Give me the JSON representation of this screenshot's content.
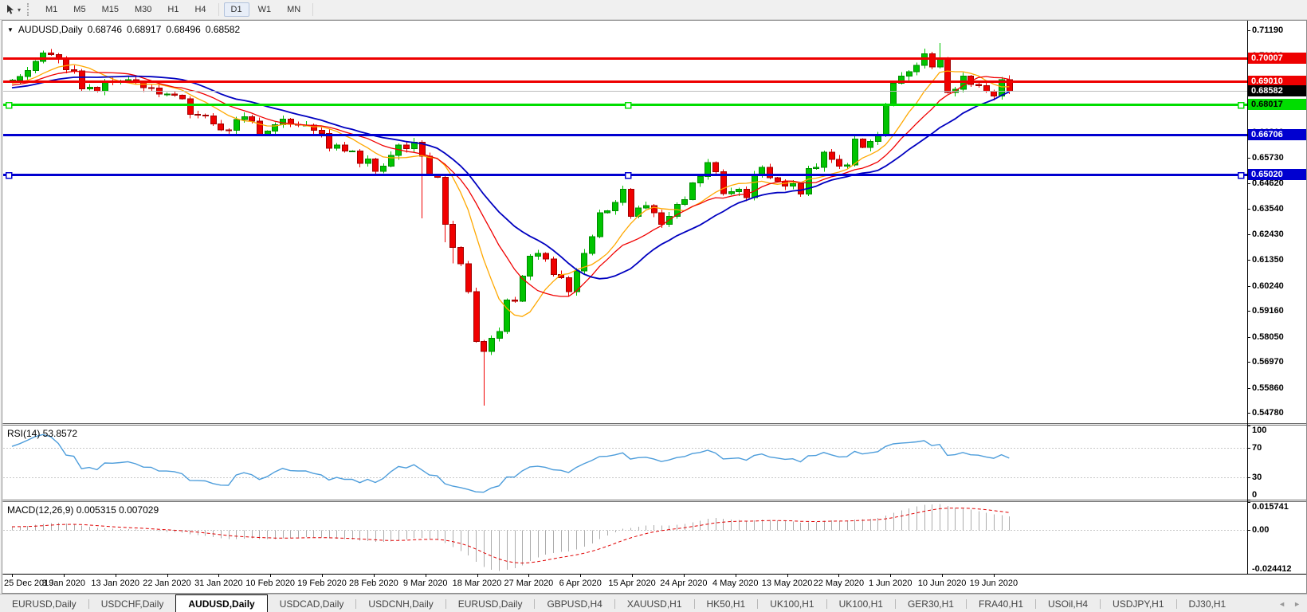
{
  "toolbar": {
    "dropdown_caret": "▾",
    "timeframes": [
      "M1",
      "M5",
      "M15",
      "M30",
      "H1",
      "H4",
      "D1",
      "W1",
      "MN"
    ],
    "active_timeframe": "D1"
  },
  "chart": {
    "title": {
      "expander": "▼",
      "symbol_period": "AUDUSD,Daily",
      "open": "0.68746",
      "high": "0.68917",
      "low": "0.68496",
      "close": "0.68582"
    },
    "price_axis_ticks": [
      "0.71190",
      "0.70110",
      "0.69000",
      "0.67920",
      "0.66810",
      "0.65730",
      "0.64620",
      "0.63540",
      "0.62430",
      "0.61350",
      "0.60240",
      "0.59160",
      "0.58050",
      "0.56970",
      "0.55860",
      "0.54780"
    ],
    "axis_price_labels": [
      {
        "text": "0.70007",
        "value": 0.70007,
        "bg": "#ee0000",
        "fg": "#ffffff"
      },
      {
        "text": "0.69010",
        "value": 0.6901,
        "bg": "#ee0000",
        "fg": "#ffffff"
      },
      {
        "text": "0.68582",
        "value": 0.68582,
        "bg": "#000000",
        "fg": "#ffffff"
      },
      {
        "text": "0.68017",
        "value": 0.68017,
        "bg": "#00dd00",
        "fg": "#000000"
      },
      {
        "text": "0.66706",
        "value": 0.66706,
        "bg": "#0000d0",
        "fg": "#ffffff"
      },
      {
        "text": "0.65020",
        "value": 0.6502,
        "bg": "#0000d0",
        "fg": "#ffffff"
      }
    ],
    "levels": [
      {
        "value": 0.70007,
        "color": "#ee0000",
        "width": 3,
        "selected": false,
        "name": "resistance-line-0-70007"
      },
      {
        "value": 0.6901,
        "color": "#ee0000",
        "width": 3,
        "selected": false,
        "name": "resistance-line-0-69010"
      },
      {
        "value": 0.68582,
        "color": "#bdbdbd",
        "width": 1,
        "selected": false,
        "name": "current-price-line"
      },
      {
        "value": 0.68017,
        "color": "#00dd00",
        "width": 3,
        "selected": true,
        "name": "support-line-0-68017"
      },
      {
        "value": 0.66706,
        "color": "#0000d0",
        "width": 3,
        "selected": false,
        "name": "support-line-0-66706"
      },
      {
        "value": 0.6502,
        "color": "#0000d0",
        "width": 3,
        "selected": true,
        "name": "support-line-0-65020"
      }
    ],
    "date_axis": [
      "25 Dec 2019",
      "3 Jan 2020",
      "13 Jan 2020",
      "22 Jan 2020",
      "31 Jan 2020",
      "10 Feb 2020",
      "19 Feb 2020",
      "28 Feb 2020",
      "9 Mar 2020",
      "18 Mar 2020",
      "27 Mar 2020",
      "6 Apr 2020",
      "15 Apr 2020",
      "24 Apr 2020",
      "4 May 2020",
      "13 May 2020",
      "22 May 2020",
      "1 Jun 2020",
      "10 Jun 2020",
      "19 Jun 2020"
    ]
  },
  "rsi_panel": {
    "label": "RSI(14) 53.8572",
    "axis_ticks": [
      "100",
      "70",
      "30",
      "0"
    ],
    "axis_values": [
      100,
      70,
      30,
      0
    ],
    "levels": [
      70,
      30
    ],
    "line_color": "#4d9ddb"
  },
  "macd_panel": {
    "label": "MACD(12,26,9) 0.005315 0.007029",
    "axis_ticks": [
      "0.015741",
      "0.00",
      "-0.024412"
    ],
    "axis_values": [
      0.015741,
      0,
      -0.024412
    ],
    "range": [
      -0.024412,
      0.015741
    ],
    "histogram_color": "#ababab",
    "signal_color": "#e00000"
  },
  "chart_data": {
    "type": "candlestick",
    "title": "AUDUSD, Daily",
    "up_color": "#00c400",
    "up_stroke": "#008a00",
    "down_color": "#f00000",
    "down_stroke": "#a00000",
    "price_range": [
      0.5435,
      0.716
    ],
    "first_open": 0.69,
    "closes": [
      0.6906,
      0.6921,
      0.6946,
      0.6986,
      0.7021,
      0.7015,
      0.6995,
      0.695,
      0.6945,
      0.6868,
      0.6875,
      0.6857,
      0.69,
      0.6898,
      0.6902,
      0.6908,
      0.6895,
      0.6873,
      0.6872,
      0.6845,
      0.6845,
      0.684,
      0.6825,
      0.6758,
      0.6756,
      0.6752,
      0.6718,
      0.6692,
      0.669,
      0.6736,
      0.6748,
      0.673,
      0.6672,
      0.6687,
      0.6715,
      0.6738,
      0.6716,
      0.6713,
      0.6713,
      0.669,
      0.6676,
      0.6613,
      0.6627,
      0.6601,
      0.6601,
      0.6549,
      0.6567,
      0.6514,
      0.6537,
      0.6583,
      0.6627,
      0.6611,
      0.6639,
      0.658,
      0.6501,
      0.6489,
      0.6287,
      0.6188,
      0.6119,
      0.5998,
      0.5785,
      0.5742,
      0.5798,
      0.5827,
      0.5962,
      0.5958,
      0.6066,
      0.615,
      0.6163,
      0.6138,
      0.6072,
      0.6058,
      0.5998,
      0.6087,
      0.6163,
      0.6235,
      0.6337,
      0.6345,
      0.6382,
      0.6438,
      0.6322,
      0.6357,
      0.6367,
      0.6337,
      0.6288,
      0.6321,
      0.6372,
      0.6393,
      0.6465,
      0.6492,
      0.6552,
      0.6512,
      0.6418,
      0.6427,
      0.6437,
      0.6402,
      0.6497,
      0.6532,
      0.6487,
      0.6471,
      0.6452,
      0.6462,
      0.6417,
      0.6527,
      0.6532,
      0.6597,
      0.6566,
      0.6537,
      0.6542,
      0.6652,
      0.6617,
      0.6642,
      0.6667,
      0.6802,
      0.6892,
      0.6922,
      0.6941,
      0.6968,
      0.7018,
      0.6962,
      0.7001,
      0.6852,
      0.6867,
      0.6922,
      0.6887,
      0.6882,
      0.6857,
      0.6837,
      0.6907,
      0.68582
    ],
    "wick_overrides": {
      "4": {
        "h": 0.7032
      },
      "53": {
        "l": 0.6313
      },
      "56": {
        "l": 0.6211
      },
      "57": {
        "l": 0.612
      },
      "61": {
        "l": 0.551
      },
      "113": {
        "o": 0.6672
      },
      "118": {
        "h": 0.7041
      },
      "120": {
        "h": 0.7064
      }
    },
    "prehistory_closes": [
      0.6775,
      0.6782,
      0.679,
      0.6778,
      0.6785,
      0.6795,
      0.6788,
      0.68,
      0.6808,
      0.6798,
      0.6805,
      0.6815,
      0.681,
      0.6822,
      0.6818,
      0.683,
      0.6825,
      0.6838,
      0.6832,
      0.6845,
      0.684,
      0.6852,
      0.6848,
      0.6858,
      0.6852,
      0.6862,
      0.6858,
      0.6868,
      0.6862,
      0.6872,
      0.6868,
      0.6878,
      0.6874,
      0.6884,
      0.688,
      0.689,
      0.6886,
      0.6896,
      0.689,
      0.6902
    ],
    "moving_averages": [
      {
        "period": 8,
        "color": "#ffa800",
        "width": 1.3,
        "name": "ma-fast-orange"
      },
      {
        "period": 13,
        "color": "#f00000",
        "width": 1.3,
        "name": "ma-mid-red"
      },
      {
        "period": 21,
        "color": "#0000c0",
        "width": 1.8,
        "name": "ma-slow-blue"
      }
    ]
  },
  "tabs": {
    "items": [
      {
        "label": "EURUSD,Daily",
        "active": false
      },
      {
        "label": "USDCHF,Daily",
        "active": false
      },
      {
        "label": "AUDUSD,Daily",
        "active": true
      },
      {
        "label": "USDCAD,Daily",
        "active": false
      },
      {
        "label": "USDCNH,Daily",
        "active": false
      },
      {
        "label": "EURUSD,Daily",
        "active": false
      },
      {
        "label": "GBPUSD,H4",
        "active": false
      },
      {
        "label": "XAUUSD,H1",
        "active": false
      },
      {
        "label": "HK50,H1",
        "active": false
      },
      {
        "label": "UK100,H1",
        "active": false
      },
      {
        "label": "UK100,H1",
        "active": false
      },
      {
        "label": "GER30,H1",
        "active": false
      },
      {
        "label": "FRA40,H1",
        "active": false
      },
      {
        "label": "USOil,H4",
        "active": false
      },
      {
        "label": "USDJPY,H1",
        "active": false
      },
      {
        "label": "DJ30,H1",
        "active": false
      }
    ],
    "nav_left": "◄",
    "nav_right": "►"
  }
}
